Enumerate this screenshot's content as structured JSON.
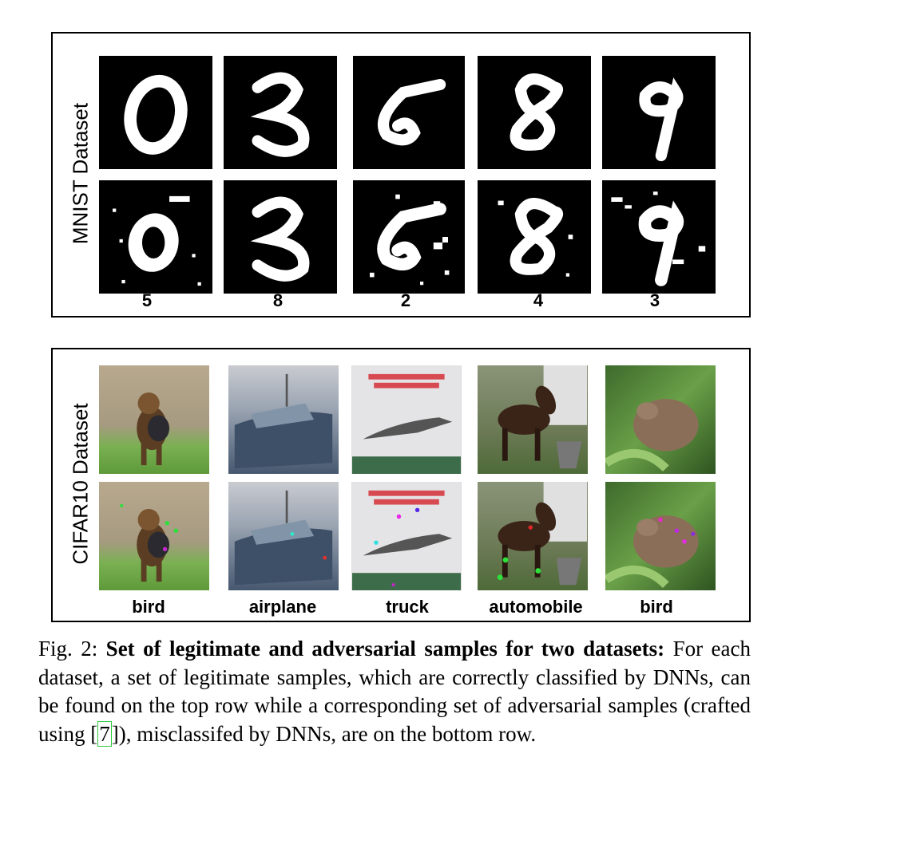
{
  "mnist": {
    "label": "MNIST Dataset",
    "predictions": [
      "5",
      "8",
      "2",
      "4",
      "3"
    ]
  },
  "cifar": {
    "label": "CIFAR10 Dataset",
    "predictions": [
      "bird",
      "airplane",
      "truck",
      "automobile",
      "bird"
    ]
  },
  "caption": {
    "fig_label": "Fig. 2:",
    "title": "Set of legitimate and adversarial samples for two datasets:",
    "text_before": "For each dataset, a set of legitimate samples, which are correctly classified by DNNs, can be found on the top row while a corresponding set of adversarial samples (crafted using [",
    "cite": "7",
    "text_after": "]), misclassifed by DNNs, are on the bottom row."
  }
}
